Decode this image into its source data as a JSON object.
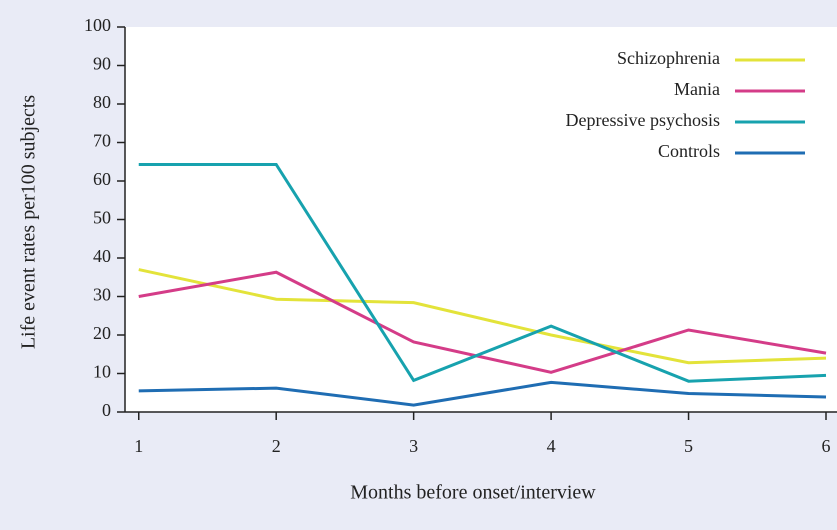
{
  "chart_data": {
    "type": "line",
    "x": [
      1,
      2,
      3,
      4,
      5,
      6
    ],
    "xlim": [
      0.9,
      6.08
    ],
    "xticks": [
      1,
      2,
      3,
      4,
      5,
      6
    ],
    "ylim": [
      0,
      100
    ],
    "yticks": [
      0,
      10,
      20,
      30,
      40,
      50,
      60,
      70,
      80,
      90,
      100
    ],
    "x_label": "Months before onset/interview",
    "y_label": "Life event rates per100 subjects",
    "legend": "upper right",
    "series": [
      {
        "name": "Schizophrenia",
        "color": "#e3e33a",
        "values": [
          37,
          29.3,
          28.4,
          20,
          12.8,
          14
        ]
      },
      {
        "name": "Mania",
        "color": "#d43c88",
        "values": [
          30,
          36.3,
          18.2,
          10.3,
          21.3,
          15.3
        ]
      },
      {
        "name": "Depressive psychosis",
        "color": "#17a2ae",
        "values": [
          64.3,
          64.3,
          8.2,
          22.3,
          8,
          9.5
        ]
      },
      {
        "name": "Controls",
        "color": "#1f6db3",
        "values": [
          5.5,
          6.2,
          1.8,
          7.7,
          4.8,
          3.9
        ]
      }
    ]
  }
}
